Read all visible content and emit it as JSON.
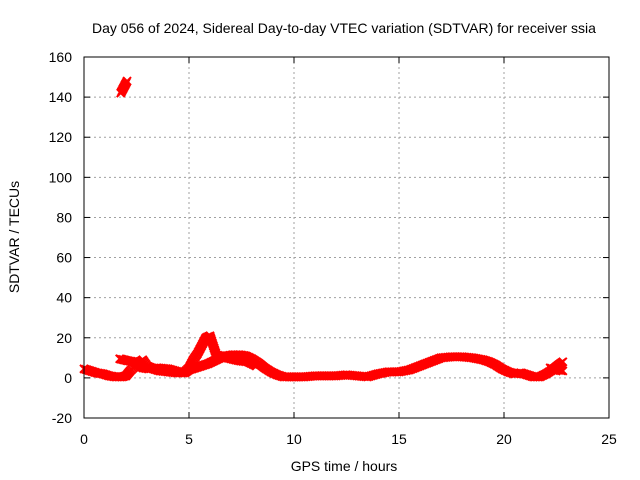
{
  "chart_data": {
    "type": "scatter",
    "title": "Day 056 of 2024, Sidereal Day-to-day VTEC variation (SDTVAR) for receiver ssia",
    "xlabel": "GPS time / hours",
    "ylabel": "SDTVAR / TECUs",
    "xlim": [
      0,
      25
    ],
    "ylim": [
      -20,
      160
    ],
    "xticks": [
      0,
      5,
      10,
      15,
      20,
      25
    ],
    "yticks": [
      -20,
      0,
      20,
      40,
      60,
      80,
      100,
      120,
      140,
      160
    ],
    "grid": true,
    "series_color": "#ff0000",
    "series": [
      {
        "name": "SDTVAR main track",
        "points": [
          [
            0.0,
            4.5
          ],
          [
            0.3,
            3.5
          ],
          [
            0.6,
            2.5
          ],
          [
            0.9,
            2.0
          ],
          [
            1.2,
            1.0
          ],
          [
            1.5,
            0.5
          ],
          [
            1.8,
            0.5
          ],
          [
            2.0,
            1.0
          ],
          [
            2.2,
            3.5
          ],
          [
            2.4,
            5.5
          ],
          [
            2.6,
            7.5
          ],
          [
            2.8,
            9.0
          ],
          [
            3.0,
            6.0
          ],
          [
            3.3,
            4.5
          ],
          [
            3.6,
            3.5
          ],
          [
            4.0,
            3.0
          ],
          [
            4.4,
            2.5
          ],
          [
            4.8,
            2.5
          ],
          [
            5.0,
            4.0
          ],
          [
            5.3,
            5.0
          ],
          [
            5.6,
            6.0
          ],
          [
            5.9,
            7.0
          ],
          [
            6.2,
            8.5
          ],
          [
            6.5,
            10.0
          ],
          [
            6.8,
            11.0
          ],
          [
            7.1,
            11.5
          ],
          [
            7.4,
            11.5
          ],
          [
            7.7,
            11.0
          ],
          [
            8.0,
            9.5
          ],
          [
            8.3,
            7.5
          ],
          [
            8.6,
            5.0
          ],
          [
            8.9,
            3.0
          ],
          [
            9.2,
            1.5
          ],
          [
            9.5,
            0.5
          ],
          [
            10.0,
            0.5
          ],
          [
            10.5,
            0.5
          ],
          [
            11.0,
            1.0
          ],
          [
            11.5,
            1.0
          ],
          [
            12.0,
            1.0
          ],
          [
            12.5,
            1.5
          ],
          [
            13.0,
            1.0
          ],
          [
            13.5,
            0.5
          ],
          [
            14.0,
            2.0
          ],
          [
            14.5,
            3.0
          ],
          [
            15.0,
            3.0
          ],
          [
            15.5,
            4.0
          ],
          [
            16.0,
            6.0
          ],
          [
            16.5,
            8.0
          ],
          [
            17.0,
            10.0
          ],
          [
            17.5,
            10.5
          ],
          [
            18.0,
            10.5
          ],
          [
            18.5,
            10.0
          ],
          [
            19.0,
            9.0
          ],
          [
            19.3,
            8.0
          ],
          [
            19.6,
            6.5
          ],
          [
            19.9,
            4.5
          ],
          [
            20.2,
            3.0
          ],
          [
            20.5,
            2.0
          ],
          [
            20.8,
            2.5
          ],
          [
            21.1,
            1.5
          ],
          [
            21.4,
            0.5
          ],
          [
            21.7,
            0.5
          ],
          [
            22.0,
            2.0
          ],
          [
            22.3,
            4.0
          ],
          [
            22.6,
            6.5
          ],
          [
            22.8,
            8.0
          ]
        ]
      },
      {
        "name": "SDTVAR secondary track",
        "points": [
          [
            1.7,
            9.5
          ],
          [
            1.9,
            9.0
          ],
          [
            2.1,
            8.5
          ],
          [
            2.4,
            8.0
          ],
          [
            2.6,
            6.5
          ],
          [
            2.8,
            5.0
          ],
          [
            3.1,
            4.5
          ],
          [
            3.5,
            5.0
          ],
          [
            4.0,
            4.5
          ],
          [
            4.5,
            3.0
          ],
          [
            4.8,
            3.0
          ],
          [
            5.0,
            5.0
          ],
          [
            5.2,
            9.0
          ],
          [
            5.4,
            12.0
          ],
          [
            5.6,
            16.0
          ],
          [
            5.8,
            20.0
          ],
          [
            6.0,
            21.0
          ],
          [
            6.3,
            11.5
          ],
          [
            6.6,
            10.5
          ],
          [
            7.0,
            9.5
          ],
          [
            7.4,
            8.5
          ],
          [
            7.8,
            8.0
          ],
          [
            8.2,
            6.0
          ],
          [
            22.2,
            5.0
          ],
          [
            22.5,
            4.0
          ],
          [
            22.8,
            3.5
          ]
        ]
      },
      {
        "name": "SDTVAR outlier",
        "points": [
          [
            1.75,
            142
          ],
          [
            1.85,
            144
          ],
          [
            1.95,
            146
          ],
          [
            2.05,
            148
          ]
        ]
      }
    ]
  }
}
